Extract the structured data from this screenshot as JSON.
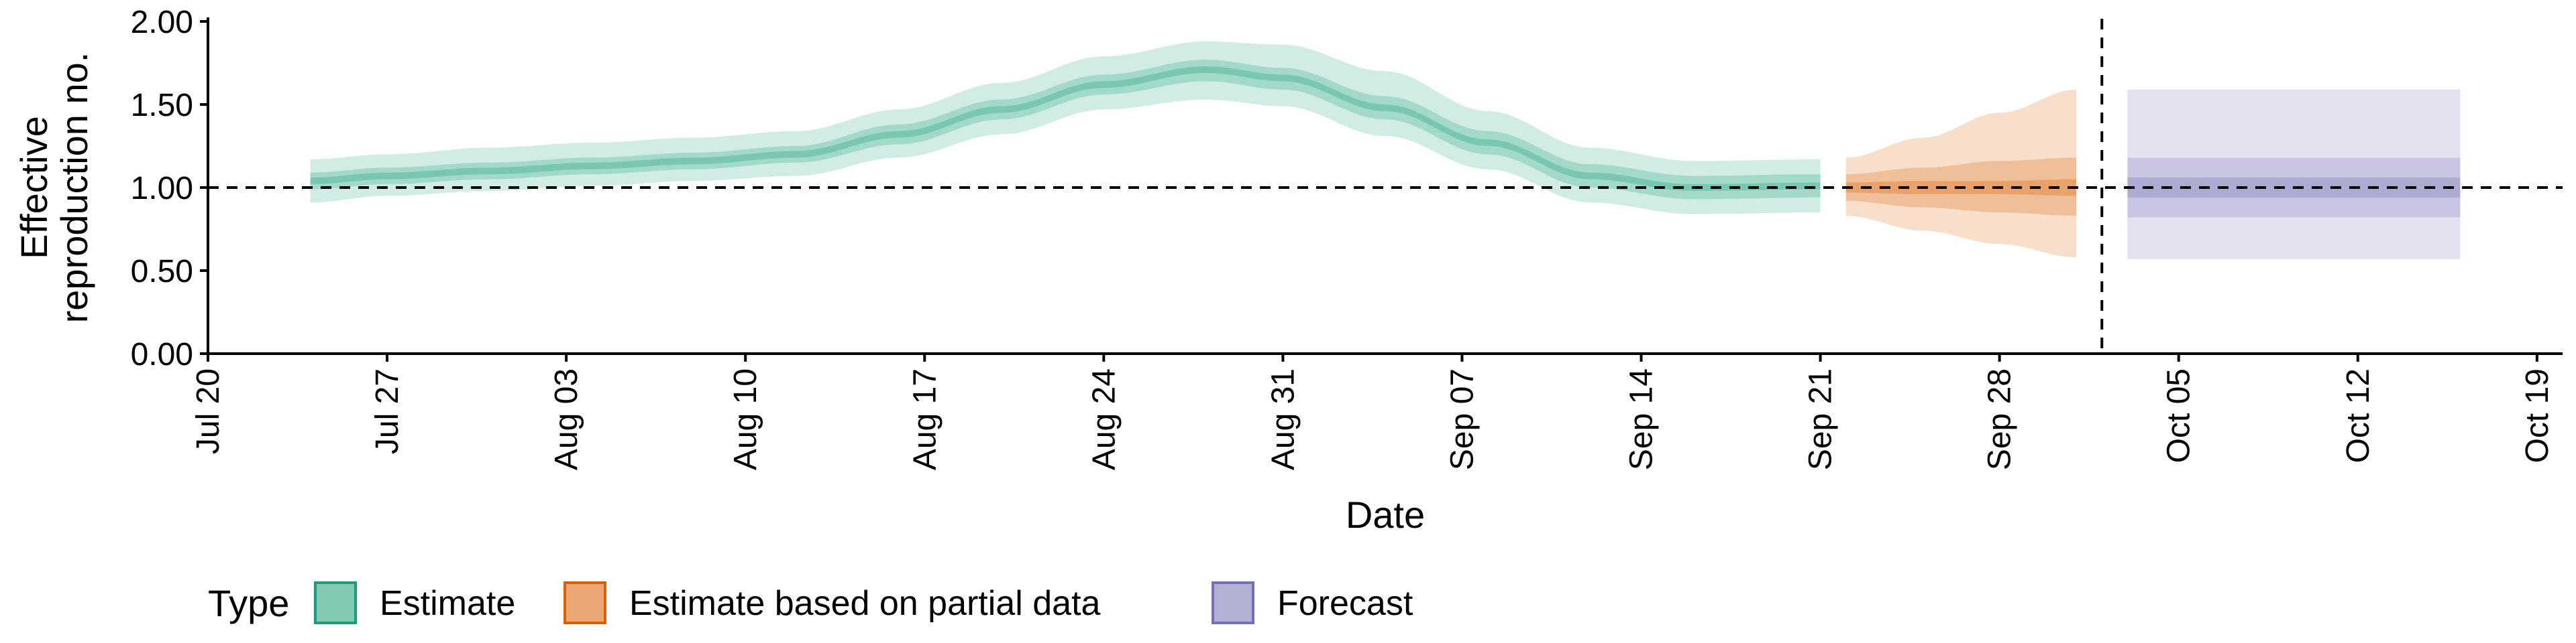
{
  "chart_data": {
    "type": "area",
    "xlabel": "Date",
    "ylabel": [
      "Effective",
      "reproduction no."
    ],
    "ylim": [
      0,
      2
    ],
    "xlim": [
      "2020-07-20",
      "2020-10-20"
    ],
    "yticks": [
      "0.00",
      "0.50",
      "1.00",
      "1.50",
      "2.00"
    ],
    "xticks": [
      {
        "date": "2020-07-20",
        "label": "Jul 20"
      },
      {
        "date": "2020-07-27",
        "label": "Jul 27"
      },
      {
        "date": "2020-08-03",
        "label": "Aug 03"
      },
      {
        "date": "2020-08-10",
        "label": "Aug 10"
      },
      {
        "date": "2020-08-17",
        "label": "Aug 17"
      },
      {
        "date": "2020-08-24",
        "label": "Aug 24"
      },
      {
        "date": "2020-08-31",
        "label": "Aug 31"
      },
      {
        "date": "2020-09-07",
        "label": "Sep 07"
      },
      {
        "date": "2020-09-14",
        "label": "Sep 14"
      },
      {
        "date": "2020-09-21",
        "label": "Sep 21"
      },
      {
        "date": "2020-09-28",
        "label": "Sep 28"
      },
      {
        "date": "2020-10-05",
        "label": "Oct 05"
      },
      {
        "date": "2020-10-12",
        "label": "Oct 12"
      },
      {
        "date": "2020-10-19",
        "label": "Oct 19"
      }
    ],
    "reference_hline": 1.0,
    "reference_vline": "2020-10-02",
    "legend": {
      "title": "Type",
      "position": "bottom"
    },
    "series": [
      {
        "name": "Estimate",
        "color": "#1b9e77",
        "points": [
          {
            "date": "2020-07-24",
            "median": 1.04,
            "lo20": 1.02,
            "hi20": 1.06,
            "lo50": 0.99,
            "hi50": 1.09,
            "lo90": 0.91,
            "hi90": 1.17
          },
          {
            "date": "2020-07-27",
            "median": 1.07,
            "lo20": 1.05,
            "hi20": 1.09,
            "lo50": 1.02,
            "hi50": 1.12,
            "lo90": 0.95,
            "hi90": 1.2
          },
          {
            "date": "2020-07-31",
            "median": 1.1,
            "lo20": 1.08,
            "hi20": 1.12,
            "lo50": 1.05,
            "hi50": 1.15,
            "lo90": 0.98,
            "hi90": 1.24
          },
          {
            "date": "2020-08-04",
            "median": 1.13,
            "lo20": 1.11,
            "hi20": 1.15,
            "lo50": 1.08,
            "hi50": 1.18,
            "lo90": 1.01,
            "hi90": 1.27
          },
          {
            "date": "2020-08-08",
            "median": 1.16,
            "lo20": 1.14,
            "hi20": 1.18,
            "lo50": 1.11,
            "hi50": 1.21,
            "lo90": 1.04,
            "hi90": 1.3
          },
          {
            "date": "2020-08-12",
            "median": 1.2,
            "lo20": 1.18,
            "hi20": 1.22,
            "lo50": 1.15,
            "hi50": 1.25,
            "lo90": 1.07,
            "hi90": 1.34
          },
          {
            "date": "2020-08-16",
            "median": 1.32,
            "lo20": 1.3,
            "hi20": 1.34,
            "lo50": 1.26,
            "hi50": 1.38,
            "lo90": 1.18,
            "hi90": 1.47
          },
          {
            "date": "2020-08-20",
            "median": 1.47,
            "lo20": 1.45,
            "hi20": 1.49,
            "lo50": 1.41,
            "hi50": 1.53,
            "lo90": 1.32,
            "hi90": 1.63
          },
          {
            "date": "2020-08-24",
            "median": 1.62,
            "lo20": 1.6,
            "hi20": 1.64,
            "lo50": 1.56,
            "hi50": 1.68,
            "lo90": 1.47,
            "hi90": 1.79
          },
          {
            "date": "2020-08-28",
            "median": 1.71,
            "lo20": 1.69,
            "hi20": 1.73,
            "lo50": 1.64,
            "hi50": 1.77,
            "lo90": 1.53,
            "hi90": 1.88
          },
          {
            "date": "2020-08-31",
            "median": 1.66,
            "lo20": 1.64,
            "hi20": 1.68,
            "lo50": 1.59,
            "hi50": 1.72,
            "lo90": 1.49,
            "hi90": 1.86
          },
          {
            "date": "2020-09-04",
            "median": 1.48,
            "lo20": 1.46,
            "hi20": 1.5,
            "lo50": 1.41,
            "hi50": 1.55,
            "lo90": 1.31,
            "hi90": 1.7
          },
          {
            "date": "2020-09-08",
            "median": 1.27,
            "lo20": 1.25,
            "hi20": 1.29,
            "lo50": 1.2,
            "hi50": 1.34,
            "lo90": 1.11,
            "hi90": 1.46
          },
          {
            "date": "2020-09-12",
            "median": 1.07,
            "lo20": 1.05,
            "hi20": 1.09,
            "lo50": 1.0,
            "hi50": 1.14,
            "lo90": 0.91,
            "hi90": 1.24
          },
          {
            "date": "2020-09-16",
            "median": 1.0,
            "lo20": 0.98,
            "hi20": 1.02,
            "lo50": 0.93,
            "hi50": 1.07,
            "lo90": 0.84,
            "hi90": 1.16
          },
          {
            "date": "2020-09-21",
            "median": 1.01,
            "lo20": 0.99,
            "hi20": 1.03,
            "lo50": 0.94,
            "hi50": 1.08,
            "lo90": 0.85,
            "hi90": 1.17
          }
        ]
      },
      {
        "name": "Estimate based on partial data",
        "color": "#d95f02",
        "points": [
          {
            "date": "2020-09-22",
            "median": 1.0,
            "lo20": 0.97,
            "hi20": 1.03,
            "lo50": 0.92,
            "hi50": 1.08,
            "lo90": 0.83,
            "hi90": 1.18
          },
          {
            "date": "2020-09-25",
            "median": 1.0,
            "lo20": 0.96,
            "hi20": 1.04,
            "lo50": 0.88,
            "hi50": 1.12,
            "lo90": 0.74,
            "hi90": 1.3
          },
          {
            "date": "2020-09-28",
            "median": 1.0,
            "lo20": 0.96,
            "hi20": 1.04,
            "lo50": 0.85,
            "hi50": 1.16,
            "lo90": 0.66,
            "hi90": 1.45
          },
          {
            "date": "2020-10-01",
            "median": 1.0,
            "lo20": 0.95,
            "hi20": 1.05,
            "lo50": 0.83,
            "hi50": 1.18,
            "lo90": 0.58,
            "hi90": 1.59
          }
        ]
      },
      {
        "name": "Forecast",
        "color": "#7570b3",
        "points": [
          {
            "date": "2020-10-03",
            "median": 1.0,
            "lo20": 0.94,
            "hi20": 1.06,
            "lo50": 0.82,
            "hi50": 1.18,
            "lo90": 0.57,
            "hi90": 1.59
          },
          {
            "date": "2020-10-16",
            "median": 1.0,
            "lo20": 0.94,
            "hi20": 1.06,
            "lo50": 0.82,
            "hi50": 1.18,
            "lo90": 0.57,
            "hi90": 1.59
          }
        ]
      }
    ]
  }
}
